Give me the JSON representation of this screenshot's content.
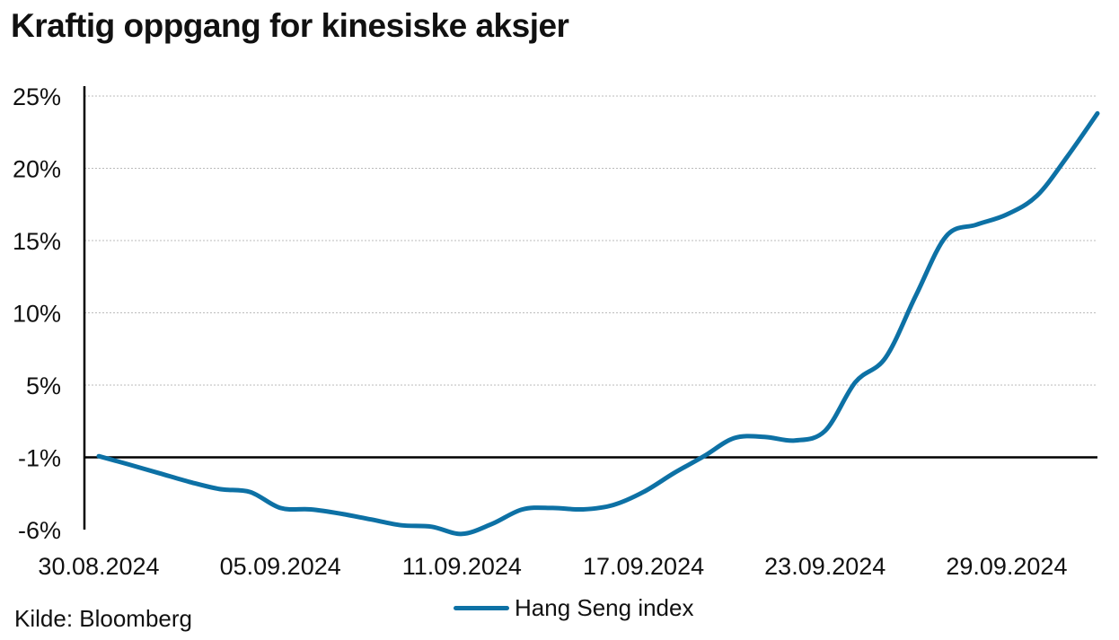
{
  "title": "Kraftig oppgang for kinesiske aksjer",
  "source": "Kilde:  Bloomberg",
  "colors": {
    "series": "#0d71a5",
    "grid": "#bbbbbb",
    "axis": "#000000"
  },
  "chart_data": {
    "type": "line",
    "title": "Kraftig oppgang for kinesiske aksjer",
    "xlabel": "",
    "ylabel": "",
    "x_ticks": [
      "30.08.2024",
      "05.09.2024",
      "11.09.2024",
      "17.09.2024",
      "23.09.2024",
      "29.09.2024"
    ],
    "y_ticks": [
      "25%",
      "20%",
      "15%",
      "10%",
      "5%",
      "-1%",
      "-6%"
    ],
    "y_tick_values": [
      25,
      20,
      15,
      10,
      5,
      -1,
      -6
    ],
    "ylim": [
      -6,
      25
    ],
    "xlim": [
      "30.08.2024",
      "02.10.2024"
    ],
    "baseline": -1,
    "grid": true,
    "legend_position": "bottom-center",
    "series": [
      {
        "name": "Hang Seng index",
        "color": "#0d71a5",
        "points": [
          {
            "x": "30.08.2024",
            "y": -0.9
          },
          {
            "x": "31.08.2024",
            "y": -1.5
          },
          {
            "x": "01.09.2024",
            "y": -2.1
          },
          {
            "x": "02.09.2024",
            "y": -2.7
          },
          {
            "x": "03.09.2024",
            "y": -3.2
          },
          {
            "x": "04.09.2024",
            "y": -3.4
          },
          {
            "x": "05.09.2024",
            "y": -4.5
          },
          {
            "x": "06.09.2024",
            "y": -4.6
          },
          {
            "x": "07.09.2024",
            "y": -4.9
          },
          {
            "x": "08.09.2024",
            "y": -5.3
          },
          {
            "x": "09.09.2024",
            "y": -5.7
          },
          {
            "x": "10.09.2024",
            "y": -5.8
          },
          {
            "x": "11.09.2024",
            "y": -6.3
          },
          {
            "x": "12.09.2024",
            "y": -5.6
          },
          {
            "x": "13.09.2024",
            "y": -4.6
          },
          {
            "x": "14.09.2024",
            "y": -4.5
          },
          {
            "x": "15.09.2024",
            "y": -4.6
          },
          {
            "x": "16.09.2024",
            "y": -4.3
          },
          {
            "x": "17.09.2024",
            "y": -3.4
          },
          {
            "x": "18.09.2024",
            "y": -2.1
          },
          {
            "x": "19.09.2024",
            "y": -0.9
          },
          {
            "x": "20.09.2024",
            "y": 0.6
          },
          {
            "x": "21.09.2024",
            "y": 0.7
          },
          {
            "x": "22.09.2024",
            "y": 0.4
          },
          {
            "x": "23.09.2024",
            "y": 1.2
          },
          {
            "x": "24.09.2024",
            "y": 5.2
          },
          {
            "x": "25.09.2024",
            "y": 6.9
          },
          {
            "x": "26.09.2024",
            "y": 11.2
          },
          {
            "x": "27.09.2024",
            "y": 15.3
          },
          {
            "x": "28.09.2024",
            "y": 16.1
          },
          {
            "x": "29.09.2024",
            "y": 16.8
          },
          {
            "x": "30.09.2024",
            "y": 18.1
          },
          {
            "x": "01.10.2024",
            "y": 20.8
          },
          {
            "x": "02.10.2024",
            "y": 23.8
          }
        ]
      }
    ]
  }
}
